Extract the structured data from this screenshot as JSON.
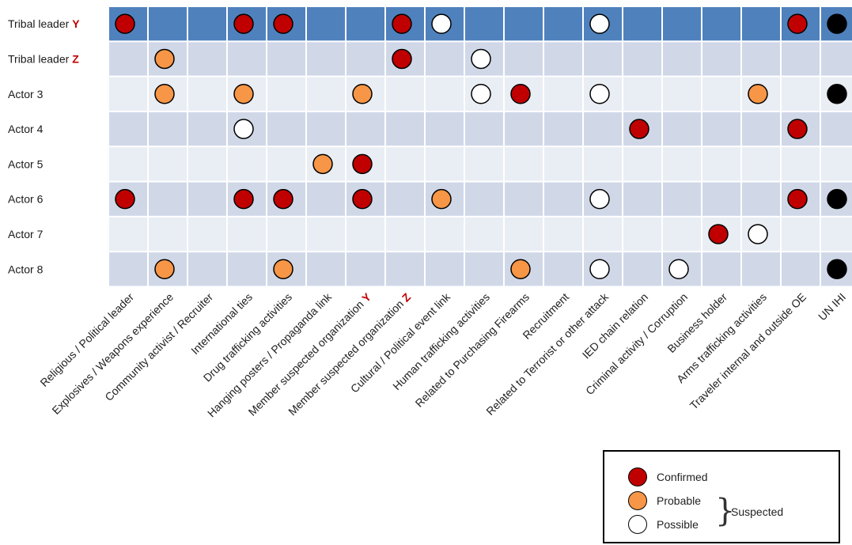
{
  "rows": [
    {
      "name": "Tribal leader ",
      "mark": "Y"
    },
    {
      "name": "Tribal leader ",
      "mark": "Z"
    },
    {
      "name": "Actor 3",
      "mark": ""
    },
    {
      "name": "Actor 4",
      "mark": ""
    },
    {
      "name": "Actor 5",
      "mark": ""
    },
    {
      "name": "Actor 6",
      "mark": ""
    },
    {
      "name": "Actor 7",
      "mark": ""
    },
    {
      "name": "Actor 8",
      "mark": ""
    }
  ],
  "columns": [
    {
      "label": "Religious / Political leader",
      "mark": ""
    },
    {
      "label": "Explosives / Weapons experience",
      "mark": ""
    },
    {
      "label": "Community activist / Recruiter",
      "mark": ""
    },
    {
      "label": "International ties",
      "mark": ""
    },
    {
      "label": "Drug trafficking activities",
      "mark": ""
    },
    {
      "label": "Hanging posters / Propaganda link",
      "mark": ""
    },
    {
      "label": "Member suspected organization ",
      "mark": "Y"
    },
    {
      "label": "Member suspected organization ",
      "mark": "Z"
    },
    {
      "label": "Cultural / Political event link",
      "mark": ""
    },
    {
      "label": "Human trafficking activities",
      "mark": ""
    },
    {
      "label": "Related to Purchasing Firearms",
      "mark": ""
    },
    {
      "label": "Recruitment",
      "mark": ""
    },
    {
      "label": "Related to Terrorist or other attack",
      "mark": ""
    },
    {
      "label": "IED chain relation",
      "mark": ""
    },
    {
      "label": "Criminal activity / Corruption",
      "mark": ""
    },
    {
      "label": "Business holder",
      "mark": ""
    },
    {
      "label": "Arms trafficking activities",
      "mark": ""
    },
    {
      "label": "Traveler internal and outside OE",
      "mark": ""
    },
    {
      "label": "UN IHI",
      "mark": ""
    }
  ],
  "status_colors": {
    "confirmed": "#c00000",
    "probable": "#f79646",
    "possible": "#ffffff",
    "black": "#000000"
  },
  "cells": [
    [
      0,
      0,
      "confirmed"
    ],
    [
      0,
      3,
      "confirmed"
    ],
    [
      0,
      4,
      "confirmed"
    ],
    [
      0,
      7,
      "confirmed"
    ],
    [
      0,
      8,
      "possible"
    ],
    [
      0,
      12,
      "possible"
    ],
    [
      0,
      17,
      "confirmed"
    ],
    [
      0,
      18,
      "black"
    ],
    [
      1,
      1,
      "probable"
    ],
    [
      1,
      7,
      "confirmed"
    ],
    [
      1,
      9,
      "possible"
    ],
    [
      2,
      1,
      "probable"
    ],
    [
      2,
      3,
      "probable"
    ],
    [
      2,
      6,
      "probable"
    ],
    [
      2,
      9,
      "possible"
    ],
    [
      2,
      10,
      "confirmed"
    ],
    [
      2,
      12,
      "possible"
    ],
    [
      2,
      16,
      "probable"
    ],
    [
      2,
      18,
      "black"
    ],
    [
      3,
      3,
      "possible"
    ],
    [
      3,
      13,
      "confirmed"
    ],
    [
      3,
      17,
      "confirmed"
    ],
    [
      4,
      5,
      "probable"
    ],
    [
      4,
      6,
      "confirmed"
    ],
    [
      5,
      0,
      "confirmed"
    ],
    [
      5,
      3,
      "confirmed"
    ],
    [
      5,
      4,
      "confirmed"
    ],
    [
      5,
      6,
      "confirmed"
    ],
    [
      5,
      8,
      "probable"
    ],
    [
      5,
      12,
      "possible"
    ],
    [
      5,
      17,
      "confirmed"
    ],
    [
      5,
      18,
      "black"
    ],
    [
      6,
      15,
      "confirmed"
    ],
    [
      6,
      16,
      "possible"
    ],
    [
      7,
      1,
      "probable"
    ],
    [
      7,
      4,
      "probable"
    ],
    [
      7,
      10,
      "probable"
    ],
    [
      7,
      12,
      "possible"
    ],
    [
      7,
      14,
      "possible"
    ],
    [
      7,
      18,
      "black"
    ]
  ],
  "legend": {
    "confirmed": "Confirmed",
    "probable": "Probable",
    "possible": "Possible",
    "suspected": "Suspected"
  }
}
